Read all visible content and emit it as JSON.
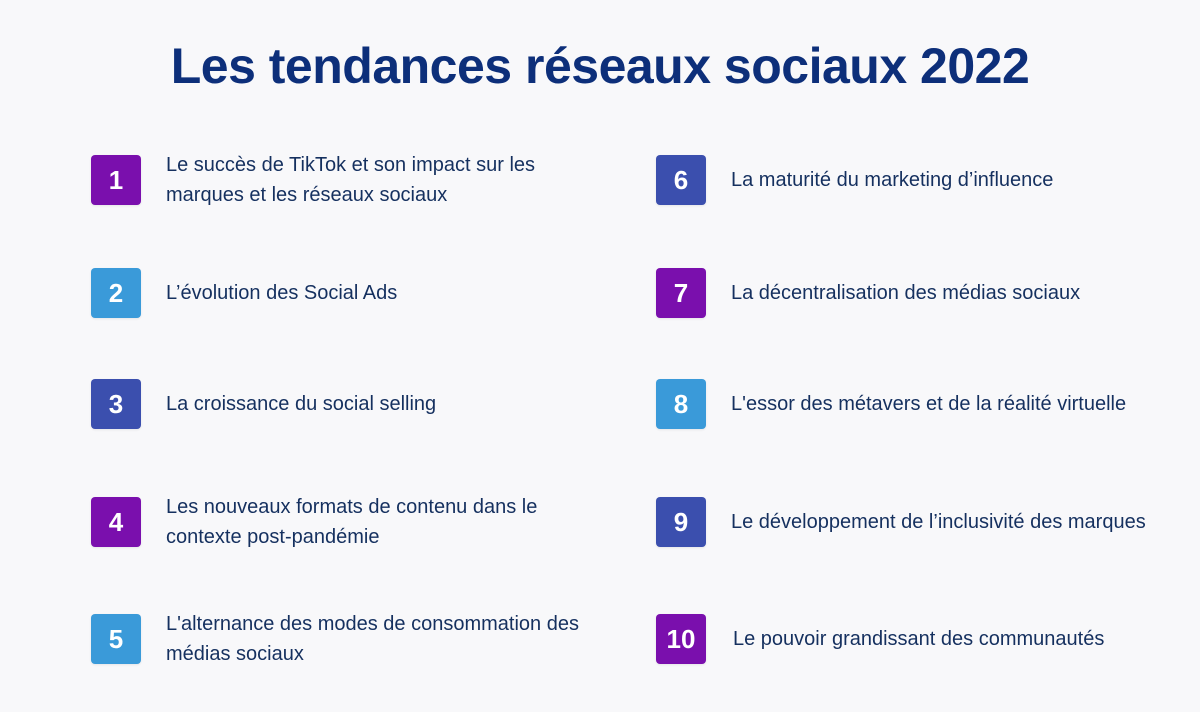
{
  "title": "Les tendances réseaux sociaux 2022",
  "colors": {
    "purple": "#7a0fad",
    "light_blue": "#3a9ad9",
    "dark_blue": "#3b4fae"
  },
  "items": [
    {
      "number": "1",
      "text": "Le succès de TikTok et son impact sur les marques et les réseaux sociaux",
      "color": "purple"
    },
    {
      "number": "2",
      "text": "L’évolution des Social Ads",
      "color": "light_blue"
    },
    {
      "number": "3",
      "text": "La croissance du social selling",
      "color": "dark_blue"
    },
    {
      "number": "4",
      "text": "Les nouveaux formats de contenu dans le contexte post-pandémie",
      "color": "purple"
    },
    {
      "number": "5",
      "text": "L'alternance des modes de consommation des médias sociaux",
      "color": "light_blue"
    },
    {
      "number": "6",
      "text": "La maturité du marketing d’influence",
      "color": "dark_blue"
    },
    {
      "number": "7",
      "text": "La décentralisation des médias sociaux",
      "color": "purple"
    },
    {
      "number": "8",
      "text": "L'essor des métavers et de la réalité virtuelle",
      "color": "light_blue"
    },
    {
      "number": "9",
      "text": "Le développement de l’inclusivité des marques",
      "color": "dark_blue"
    },
    {
      "number": "10",
      "text": "Le pouvoir grandissant des communautés",
      "color": "purple"
    }
  ]
}
